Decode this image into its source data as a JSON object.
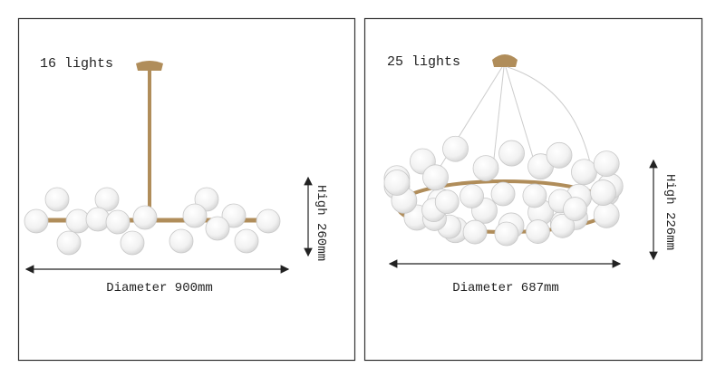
{
  "panels": [
    {
      "label": "16 lights",
      "width": "Diameter 900mm",
      "height": "High 260mm"
    },
    {
      "label": "25 lights",
      "width": "Diameter 687mm",
      "height": "High 226mm"
    }
  ]
}
